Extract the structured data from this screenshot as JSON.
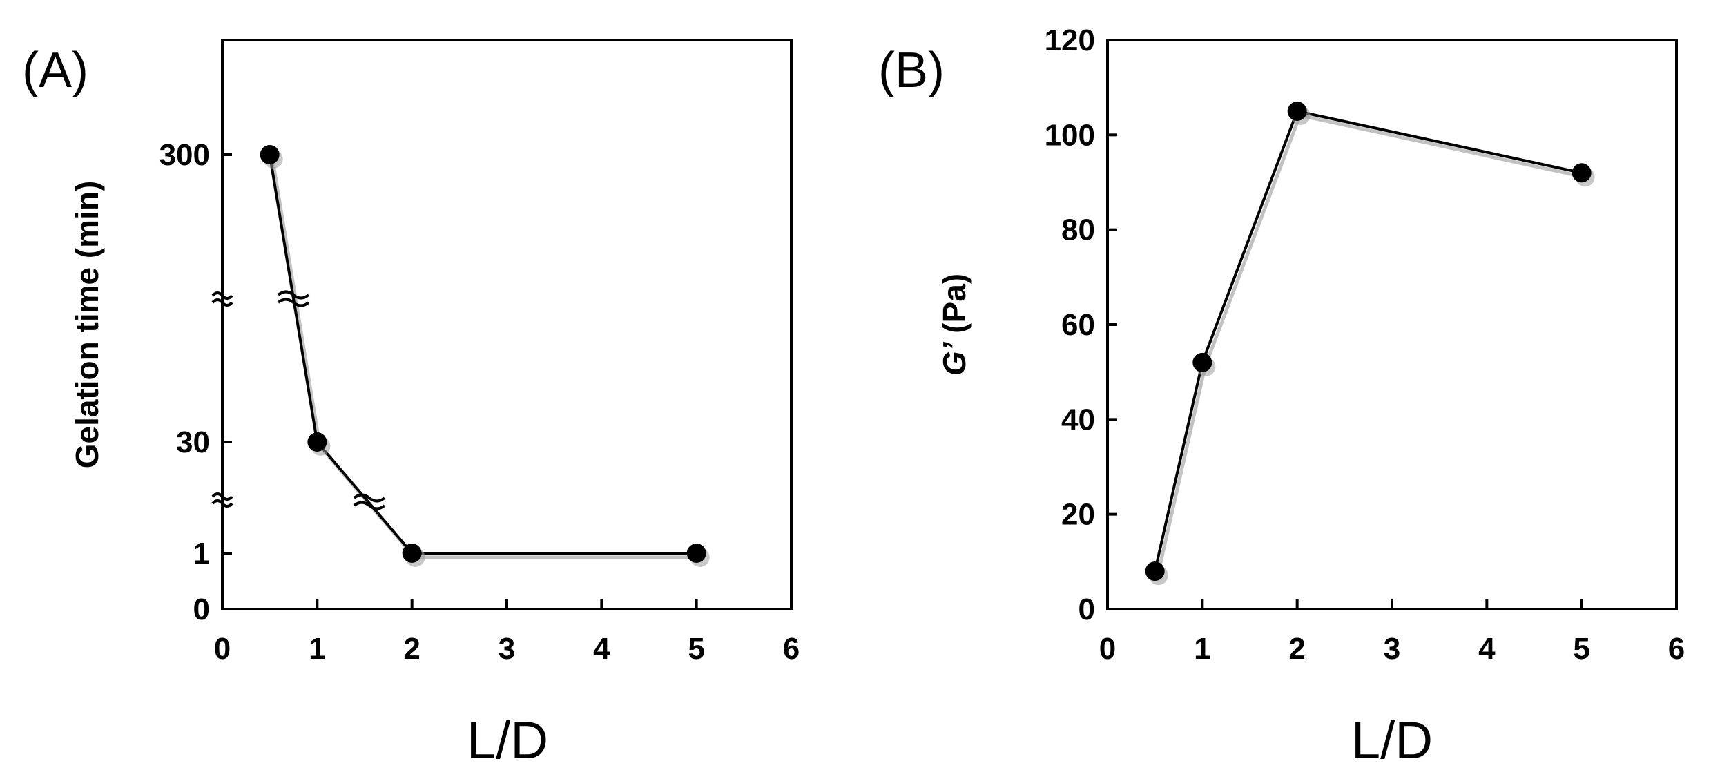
{
  "chart_data": [
    {
      "type": "line",
      "panel_label": "(A)",
      "title": "",
      "xlabel": "L/D",
      "ylabel": "Gelation time (min)",
      "xlim": [
        0,
        6
      ],
      "x_ticks": [
        0,
        1,
        2,
        3,
        4,
        5,
        6
      ],
      "y_ticks": [
        0,
        1,
        30,
        300
      ],
      "y_axis_breaks": true,
      "grid": false,
      "x": [
        0.5,
        1,
        2,
        5
      ],
      "values": [
        300,
        30,
        1,
        1
      ]
    },
    {
      "type": "line",
      "panel_label": "(B)",
      "title": "",
      "xlabel": "L/D",
      "ylabel_italic": "G’",
      "ylabel": " (Pa)",
      "xlim": [
        0,
        6
      ],
      "ylim": [
        0,
        120
      ],
      "x_ticks": [
        0,
        1,
        2,
        3,
        4,
        5,
        6
      ],
      "y_ticks": [
        0,
        20,
        40,
        60,
        80,
        100,
        120
      ],
      "grid": false,
      "x": [
        0.5,
        1,
        2,
        5
      ],
      "values": [
        8,
        52,
        105,
        92
      ]
    }
  ]
}
